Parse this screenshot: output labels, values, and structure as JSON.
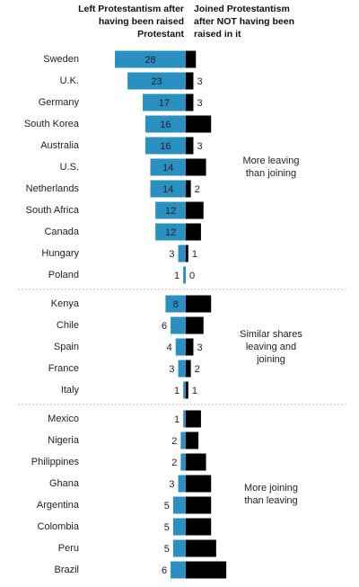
{
  "chart_data": {
    "type": "diverging-bar",
    "series": [
      {
        "name": [
          "Left Protestantism after",
          "having been raised",
          "Protestant"
        ],
        "color": "#2a8fc1"
      },
      {
        "name": [
          "Joined Protestantism",
          "after NOT having been",
          "raised in it"
        ],
        "color": "#000000"
      }
    ],
    "groups": [
      {
        "annotation": [
          "More leaving",
          "than joining"
        ],
        "categories": [
          "Sweden",
          "U.K.",
          "Germany",
          "South Korea",
          "Australia",
          "U.S.",
          "Netherlands",
          "South Africa",
          "Canada",
          "Hungary",
          "Poland"
        ],
        "left": [
          28,
          23,
          17,
          16,
          16,
          14,
          14,
          12,
          12,
          3,
          1
        ],
        "right": [
          4,
          3,
          3,
          10,
          3,
          8,
          2,
          7,
          6,
          1,
          0
        ],
        "right_labels": [
          null,
          "3",
          "3",
          null,
          "3",
          null,
          "2",
          null,
          null,
          "1",
          "0"
        ]
      },
      {
        "annotation": [
          "Similar shares",
          "leaving and",
          "joining"
        ],
        "categories": [
          "Kenya",
          "Chile",
          "Spain",
          "France",
          "Italy"
        ],
        "left": [
          8,
          6,
          4,
          3,
          1
        ],
        "right": [
          10,
          7,
          3,
          2,
          1
        ],
        "right_labels": [
          null,
          null,
          "3",
          "2",
          "1"
        ]
      },
      {
        "annotation": [
          "More joining",
          "than leaving"
        ],
        "categories": [
          "Mexico",
          "Nigeria",
          "Philippines",
          "Ghana",
          "Argentina",
          "Colombia",
          "Peru",
          "Brazil"
        ],
        "left": [
          1,
          2,
          2,
          3,
          5,
          5,
          5,
          6
        ],
        "right": [
          6,
          5,
          8,
          10,
          10,
          10,
          12,
          16
        ],
        "right_labels": [
          null,
          null,
          null,
          null,
          null,
          null,
          null,
          null
        ]
      }
    ]
  }
}
